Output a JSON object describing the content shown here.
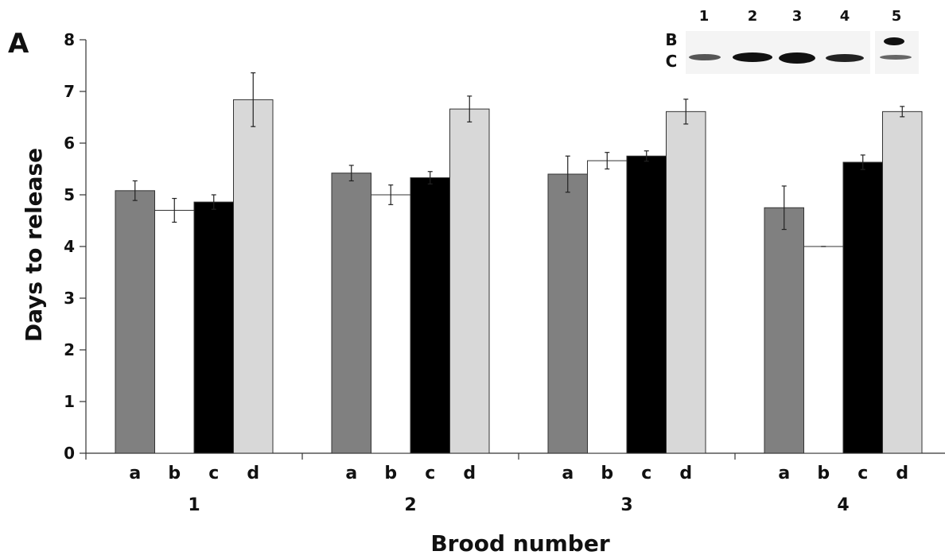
{
  "panel_label": "A",
  "chart_data": {
    "type": "bar",
    "ylabel": "Days to release",
    "xlabel": "Brood number",
    "ylim": [
      0,
      8
    ],
    "yticks": [
      "0",
      "1",
      "2",
      "3",
      "4",
      "5",
      "6",
      "7",
      "8"
    ],
    "groups": [
      "1",
      "2",
      "3",
      "4"
    ],
    "subcategories": [
      "a",
      "b",
      "c",
      "d"
    ],
    "error_bars": true,
    "series": [
      {
        "subcategory": "a",
        "color": "#808080",
        "values": [
          5.08,
          5.42,
          5.4,
          4.75
        ],
        "errors": [
          0.19,
          0.15,
          0.35,
          0.42
        ]
      },
      {
        "subcategory": "b",
        "color": "#ffffff",
        "values": [
          4.7,
          5.0,
          5.66,
          4.0
        ],
        "errors": [
          0.23,
          0.19,
          0.16,
          0.0
        ]
      },
      {
        "subcategory": "c",
        "color": "#000000",
        "values": [
          4.86,
          5.33,
          5.75,
          5.63
        ],
        "errors": [
          0.14,
          0.12,
          0.1,
          0.14
        ]
      },
      {
        "subcategory": "d",
        "color": "#d8d8d8",
        "values": [
          6.84,
          6.66,
          6.61,
          6.61
        ],
        "errors": [
          0.52,
          0.25,
          0.24,
          0.1
        ]
      }
    ]
  },
  "inset_blot": {
    "lanes": [
      "1",
      "2",
      "3",
      "4",
      "5"
    ],
    "band_labels": [
      "B",
      "C"
    ]
  }
}
